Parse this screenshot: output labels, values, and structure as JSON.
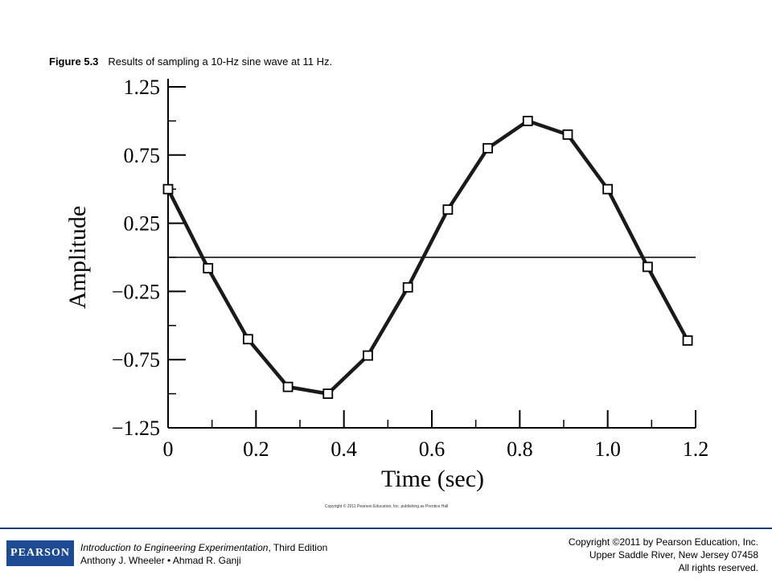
{
  "figure": {
    "number": "Figure 5.3",
    "caption": "Results of sampling a 10-Hz sine wave at 11 Hz."
  },
  "small_copyright": "Copyright © 2011 Pearson Education, Inc. publishing as Prentice Hall",
  "footer": {
    "logo_text": "PEARSON",
    "book_title": "Introduction to Engineering Experimentation",
    "book_edition": ", Third Edition",
    "authors": "Anthony J. Wheeler • Ahmad R. Ganji",
    "copyright_line1": "Copyright ©2011 by Pearson Education, Inc.",
    "copyright_line2": "Upper Saddle River, New Jersey 07458",
    "copyright_line3": "All rights reserved."
  },
  "chart_data": {
    "type": "line",
    "xlabel": "Time (sec)",
    "ylabel": "Amplitude",
    "xlim": [
      0,
      1.2
    ],
    "ylim": [
      -1.25,
      1.25
    ],
    "x_ticks": [
      0,
      0.2,
      0.4,
      0.6,
      0.8,
      1.0,
      1.2
    ],
    "x_tick_labels": [
      "0",
      "0.2",
      "0.4",
      "0.6",
      "0.8",
      "1.0",
      "1.2"
    ],
    "y_ticks": [
      1.25,
      0.75,
      0.25,
      -0.25,
      -0.75,
      -1.25
    ],
    "y_tick_labels": [
      "1.25",
      "0.75",
      "0.25",
      "−0.25",
      "−0.75",
      "−1.25"
    ],
    "reference_line_y": 0,
    "marker": "open-square",
    "series": [
      {
        "x": [
          0,
          0.0909,
          0.1818,
          0.2727,
          0.3636,
          0.4545,
          0.5455,
          0.6364,
          0.7273,
          0.8182,
          0.9091,
          1.0,
          1.0909,
          1.1818
        ],
        "y": [
          0.5,
          -0.08,
          -0.6,
          -0.95,
          -1.0,
          -0.72,
          -0.22,
          0.35,
          0.8,
          1.0,
          0.9,
          0.5,
          -0.07,
          -0.61
        ]
      }
    ]
  }
}
